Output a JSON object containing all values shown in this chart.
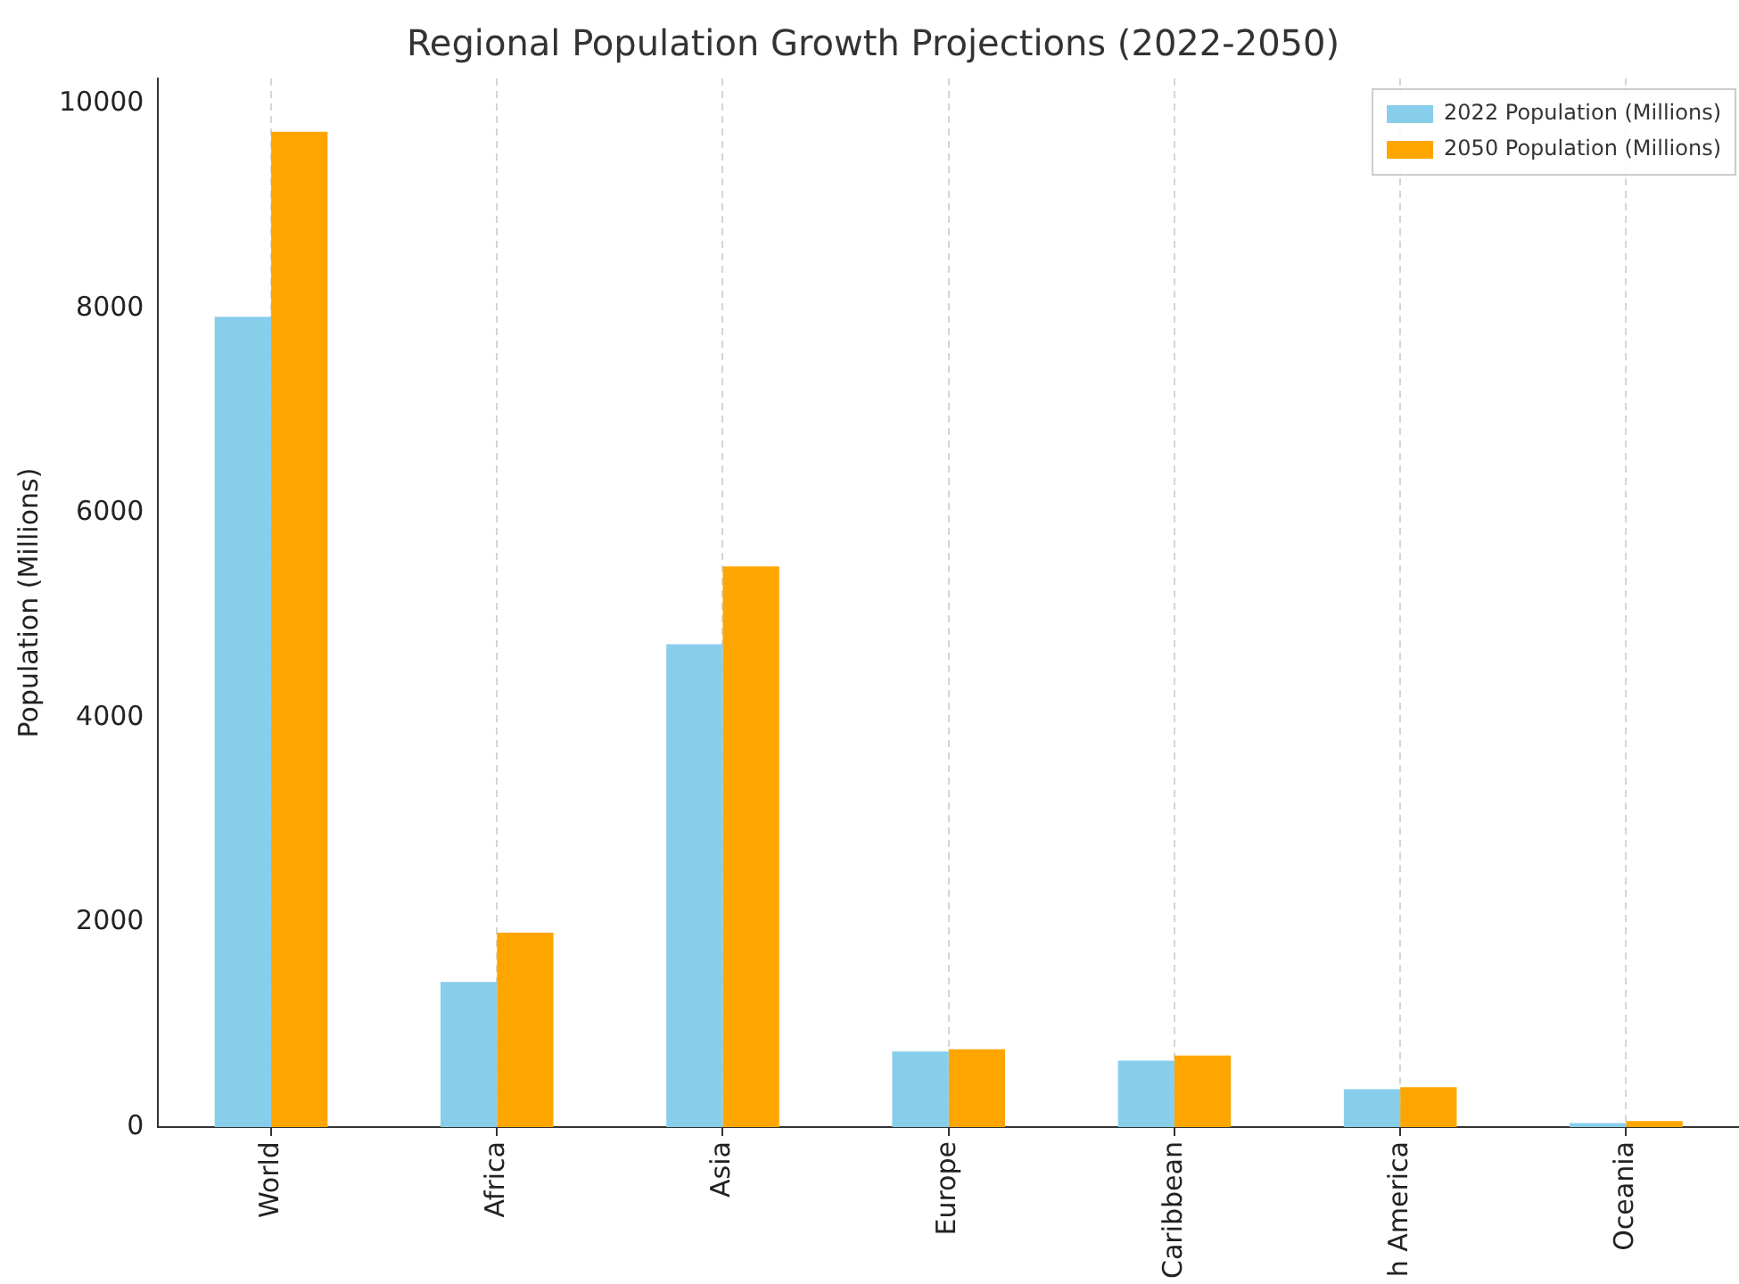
{
  "chart_data": {
    "type": "bar",
    "title": "Regional Population Growth Projections (2022-2050)",
    "ylabel": "Population (Millions)",
    "categories": [
      "World",
      "Africa",
      "Asia",
      "Europe",
      "Caribbean",
      "h America",
      "Oceania"
    ],
    "series": [
      {
        "name": "2022 Population (Millions)",
        "color": "#87ceeb",
        "values": [
          7920,
          1420,
          4720,
          740,
          650,
          370,
          40
        ]
      },
      {
        "name": "2050 Population (Millions)",
        "color": "#ffa500",
        "values": [
          9730,
          1900,
          5480,
          760,
          700,
          390,
          60
        ]
      }
    ],
    "ylim": [
      0,
      10250
    ],
    "yticks": [
      0,
      2000,
      4000,
      6000,
      8000,
      10000
    ],
    "grid": "x",
    "legend": "top right"
  }
}
